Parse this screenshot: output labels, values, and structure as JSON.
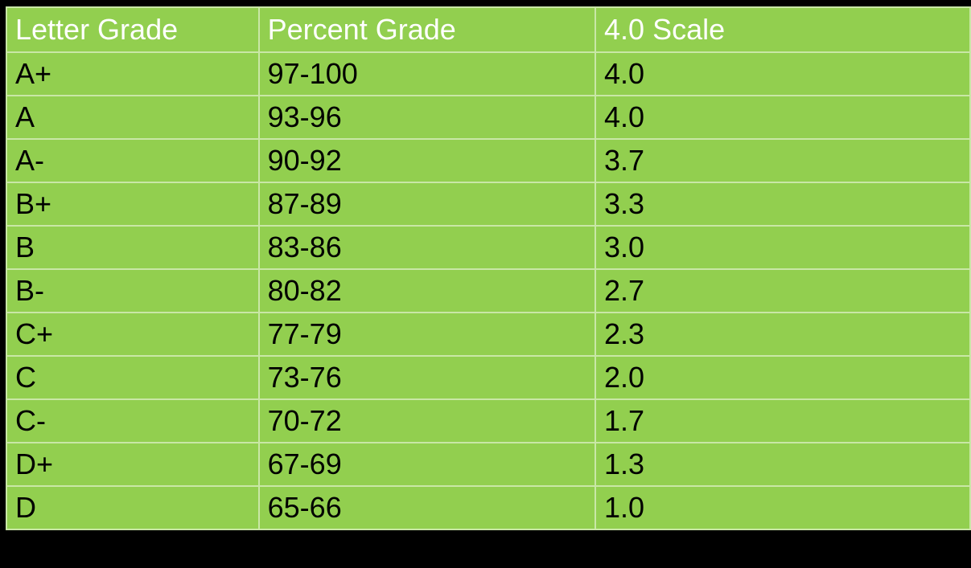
{
  "table": {
    "headers": [
      "Letter Grade",
      "Percent Grade",
      "4.0 Scale"
    ],
    "rows": [
      [
        "A+",
        "97-100",
        "4.0"
      ],
      [
        "A",
        "93-96",
        "4.0"
      ],
      [
        "A-",
        "90-92",
        "3.7"
      ],
      [
        "B+",
        "87-89",
        "3.3"
      ],
      [
        "B",
        "83-86",
        "3.0"
      ],
      [
        "B-",
        "80-82",
        "2.7"
      ],
      [
        "C+",
        "77-79",
        "2.3"
      ],
      [
        "C",
        "73-76",
        "2.0"
      ],
      [
        "C-",
        "70-72",
        "1.7"
      ],
      [
        "D+",
        "67-69",
        "1.3"
      ],
      [
        "D",
        "65-66",
        "1.0"
      ]
    ]
  },
  "colors": {
    "background": "#000000",
    "cell_fill": "#92cf4f",
    "grid_line": "#c9e7a6",
    "header_text": "#ffffff",
    "body_text": "#000000"
  }
}
